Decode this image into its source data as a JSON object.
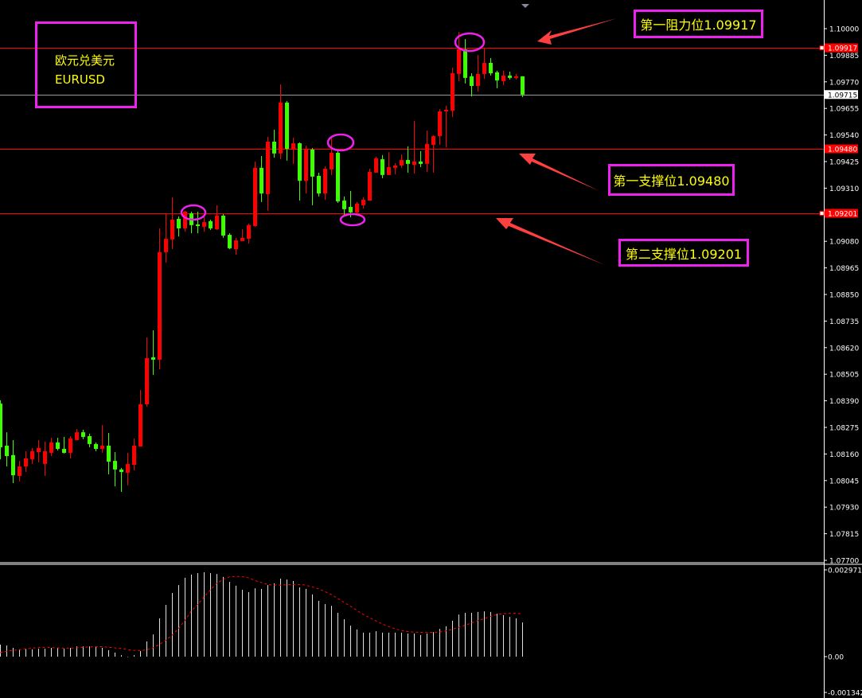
{
  "chart_data": {
    "type": "candlestick",
    "symbol_cn": "欧元兑美元",
    "symbol": "EURUSD",
    "colors": {
      "bull": "#ff0000",
      "bear": "#3cff00",
      "background": "#000000",
      "level_line": "#ff0000",
      "annotation_box": "#ee22ee",
      "annotation_text": "#ffff00",
      "arrow": "#ff4040",
      "histogram": "#e0e0e0",
      "signal": "#ff0000"
    },
    "price_axis": {
      "ylim": [
        1.077,
        1.1
      ],
      "ticks": [
        "1.10000",
        "1.09885",
        "1.09770",
        "1.09655",
        "1.09540",
        "1.09425",
        "1.09310",
        "1.09080",
        "1.08965",
        "1.08850",
        "1.08735",
        "1.08620",
        "1.08505",
        "1.08390",
        "1.08275",
        "1.08160",
        "1.08045",
        "1.07930",
        "1.07815",
        "1.07700"
      ]
    },
    "price_tags": [
      {
        "value": "1.09917",
        "style": "red"
      },
      {
        "value": "1.09715",
        "style": "white"
      },
      {
        "value": "1.09480",
        "style": "red"
      },
      {
        "value": "1.09201",
        "style": "red"
      }
    ],
    "levels": [
      {
        "price": 1.09917,
        "label": "第一阻力位1.09917",
        "kind": "resistance"
      },
      {
        "price": 1.0948,
        "label": "第一支撑位1.09480",
        "kind": "support"
      },
      {
        "price": 1.09201,
        "label": "第二支撑位1.09201",
        "kind": "support"
      }
    ],
    "current_price": 1.09715,
    "candles_ohlc": [
      [
        1.08378,
        1.08392,
        1.08137,
        1.08189
      ],
      [
        1.08196,
        1.08254,
        1.08106,
        1.08151
      ],
      [
        1.08155,
        1.0822,
        1.08034,
        1.08068
      ],
      [
        1.08065,
        1.0813,
        1.08041,
        1.08106
      ],
      [
        1.08106,
        1.08172,
        1.08082,
        1.08141
      ],
      [
        1.08137,
        1.08186,
        1.08117,
        1.08172
      ],
      [
        1.08168,
        1.0822,
        1.08124,
        1.08186
      ],
      [
        1.08117,
        1.08213,
        1.08065,
        1.08172
      ],
      [
        1.08165,
        1.0823,
        1.08151,
        1.0821
      ],
      [
        1.0821,
        1.0823,
        1.08175,
        1.08182
      ],
      [
        1.08182,
        1.08234,
        1.08162,
        1.08165
      ],
      [
        1.08165,
        1.08237,
        1.08141,
        1.08227
      ],
      [
        1.0822,
        1.08268,
        1.0822,
        1.08254
      ],
      [
        1.08254,
        1.08265,
        1.08224,
        1.08234
      ],
      [
        1.08237,
        1.08248,
        1.08189,
        1.08203
      ],
      [
        1.08203,
        1.0821,
        1.08172,
        1.08182
      ],
      [
        1.08182,
        1.08285,
        1.08165,
        1.08196
      ],
      [
        1.08196,
        1.08251,
        1.08072,
        1.08127
      ],
      [
        1.0813,
        1.08168,
        1.0802,
        1.08093
      ],
      [
        1.08093,
        1.081,
        1.07996,
        1.08082
      ],
      [
        1.08079,
        1.08165,
        1.08024,
        1.08117
      ],
      [
        1.08113,
        1.08227,
        1.08089,
        1.08196
      ],
      [
        1.08192,
        1.08437,
        1.08192,
        1.08375
      ],
      [
        1.08375,
        1.08664,
        1.08365,
        1.08575
      ],
      [
        1.08578,
        1.08695,
        1.08502,
        1.08568
      ],
      [
        1.08568,
        1.09136,
        1.08526,
        1.09033
      ],
      [
        1.09033,
        1.09201,
        1.08988,
        1.09091
      ],
      [
        1.09088,
        1.0927,
        1.09046,
        1.09174
      ],
      [
        1.09177,
        1.09188,
        1.09101,
        1.09136
      ],
      [
        1.09136,
        1.09212,
        1.09122,
        1.09208
      ],
      [
        1.09201,
        1.09208,
        1.09115,
        1.0915
      ],
      [
        1.09153,
        1.09208,
        1.09115,
        1.0915
      ],
      [
        1.09143,
        1.09184,
        1.09122,
        1.09163
      ],
      [
        1.09167,
        1.09174,
        1.09129,
        1.09136
      ],
      [
        1.09132,
        1.09236,
        1.09129,
        1.09191
      ],
      [
        1.09191,
        1.09198,
        1.09095,
        1.09105
      ],
      [
        1.09108,
        1.09115,
        1.09046,
        1.0905
      ],
      [
        1.09046,
        1.09095,
        1.09022,
        1.09084
      ],
      [
        1.09081,
        1.09132,
        1.09081,
        1.09095
      ],
      [
        1.09091,
        1.09157,
        1.0907,
        1.0915
      ],
      [
        1.09146,
        1.09425,
        1.09143,
        1.09398
      ],
      [
        1.09398,
        1.09449,
        1.0925,
        1.09287
      ],
      [
        1.09284,
        1.09532,
        1.09212,
        1.09511
      ],
      [
        1.09511,
        1.09563,
        1.09442,
        1.0946
      ],
      [
        1.0946,
        1.09759,
        1.09435,
        1.0968
      ],
      [
        1.0968,
        1.09687,
        1.09429,
        1.0948
      ],
      [
        1.0948,
        1.09528,
        1.09415,
        1.09504
      ],
      [
        1.09504,
        1.09508,
        1.09256,
        1.09342
      ],
      [
        1.09342,
        1.09494,
        1.09287,
        1.09477
      ],
      [
        1.09477,
        1.09484,
        1.09236,
        1.0936
      ],
      [
        1.09363,
        1.09377,
        1.09274,
        1.09287
      ],
      [
        1.09287,
        1.09404,
        1.0926,
        1.09394
      ],
      [
        1.09391,
        1.09528,
        1.09367,
        1.09463
      ],
      [
        1.09463,
        1.0947,
        1.09246,
        1.09253
      ],
      [
        1.09256,
        1.09274,
        1.09194,
        1.09219
      ],
      [
        1.09229,
        1.09298,
        1.09184,
        1.09205
      ],
      [
        1.09205,
        1.0925,
        1.09194,
        1.09243
      ],
      [
        1.09236,
        1.0927,
        1.09222,
        1.0926
      ],
      [
        1.09256,
        1.09394,
        1.09256,
        1.0938
      ],
      [
        1.09377,
        1.09446,
        1.09377,
        1.09439
      ],
      [
        1.09435,
        1.09453,
        1.09353,
        1.09367
      ],
      [
        1.09367,
        1.09466,
        1.09367,
        1.09401
      ],
      [
        1.09398,
        1.09418,
        1.0937,
        1.09408
      ],
      [
        1.09408,
        1.09456,
        1.09398,
        1.09432
      ],
      [
        1.09432,
        1.09491,
        1.09377,
        1.09415
      ],
      [
        1.09411,
        1.09601,
        1.09373,
        1.09425
      ],
      [
        1.09425,
        1.0947,
        1.09401,
        1.09415
      ],
      [
        1.09415,
        1.09559,
        1.0938,
        1.09501
      ],
      [
        1.09497,
        1.09539,
        1.09377,
        1.09535
      ],
      [
        1.09535,
        1.09652,
        1.09497,
        1.09642
      ],
      [
        1.09645,
        1.09666,
        1.09487,
        1.09649
      ],
      [
        1.09645,
        1.09831,
        1.09618,
        1.09807
      ],
      [
        1.09804,
        1.09986,
        1.09773,
        1.09911
      ],
      [
        1.09911,
        1.09955,
        1.09763,
        1.09787
      ],
      [
        1.09794,
        1.09807,
        1.09707,
        1.09752
      ],
      [
        1.09752,
        1.09886,
        1.09728,
        1.09804
      ],
      [
        1.09804,
        1.09917,
        1.09783,
        1.09852
      ],
      [
        1.09852,
        1.09873,
        1.09797,
        1.09807
      ],
      [
        1.09811,
        1.09818,
        1.09742,
        1.09776
      ],
      [
        1.09773,
        1.09818,
        1.09756,
        1.09797
      ],
      [
        1.09797,
        1.09814,
        1.0978,
        1.09787
      ],
      [
        1.09787,
        1.09804,
        1.0978,
        1.09794
      ],
      [
        1.09794,
        1.09794,
        1.09704,
        1.09715
      ]
    ],
    "indicator": {
      "ylim": [
        -0.001342,
        0.002971
      ],
      "ticks": [
        "0.002971",
        "0.00",
        "-0.001342"
      ],
      "histogram": [
        0.00041,
        0.00038,
        0.0003,
        0.00025,
        0.00027,
        0.00025,
        0.00027,
        0.00027,
        0.0003,
        0.0003,
        0.00027,
        0.0003,
        0.00035,
        0.00035,
        0.00035,
        0.00033,
        0.0003,
        0.00022,
        0.00014,
        5e-05,
        0.0,
        5e-05,
        0.00019,
        0.00052,
        0.00076,
        0.00131,
        0.00177,
        0.00218,
        0.00245,
        0.0027,
        0.00281,
        0.00286,
        0.00289,
        0.00286,
        0.00283,
        0.00273,
        0.00256,
        0.00243,
        0.00229,
        0.00221,
        0.00234,
        0.00232,
        0.00245,
        0.00251,
        0.00267,
        0.00264,
        0.00259,
        0.00237,
        0.00232,
        0.00213,
        0.00191,
        0.0018,
        0.00174,
        0.0015,
        0.00128,
        0.00106,
        0.00093,
        0.00082,
        0.00082,
        0.00087,
        0.00082,
        0.00082,
        0.00082,
        0.00082,
        0.00079,
        0.00079,
        0.00074,
        0.00079,
        0.00084,
        0.00095,
        0.00104,
        0.00123,
        0.00144,
        0.0015,
        0.0015,
        0.00153,
        0.00155,
        0.00153,
        0.00147,
        0.00142,
        0.00136,
        0.00131,
        0.00117
      ],
      "signal": [
        0.00014,
        0.00018,
        0.00021,
        0.00024,
        0.00026,
        0.00029,
        0.00031,
        0.00031,
        0.00031,
        0.0003,
        0.00029,
        0.00029,
        0.0003,
        0.00032,
        0.00033,
        0.00034,
        0.00034,
        0.00032,
        0.0003,
        0.00028,
        0.00024,
        0.00021,
        0.00021,
        0.00023,
        0.0003,
        0.00041,
        0.00055,
        0.00073,
        0.00095,
        0.00123,
        0.00155,
        0.00177,
        0.00204,
        0.00227,
        0.0025,
        0.00264,
        0.00273,
        0.00275,
        0.00274,
        0.0027,
        0.00261,
        0.00254,
        0.00247,
        0.00245,
        0.00245,
        0.00246,
        0.00247,
        0.00247,
        0.00245,
        0.00239,
        0.00232,
        0.00223,
        0.00213,
        0.002,
        0.00186,
        0.00173,
        0.00159,
        0.00145,
        0.00134,
        0.00123,
        0.00112,
        0.00103,
        0.00095,
        0.0009,
        0.00086,
        0.00084,
        0.00083,
        0.00083,
        0.00083,
        0.00084,
        0.00088,
        0.00093,
        0.001,
        0.00107,
        0.00115,
        0.00123,
        0.0013,
        0.00137,
        0.00144,
        0.00147,
        0.00149,
        0.00149,
        0.00146
      ]
    }
  },
  "annotations": {
    "title_cn": "欧元兑美元",
    "title_en": "EURUSD",
    "resistance1": "第一阻力位1.09917",
    "support1": "第一支撑位1.09480",
    "support2": "第二支撑位1.09201"
  }
}
